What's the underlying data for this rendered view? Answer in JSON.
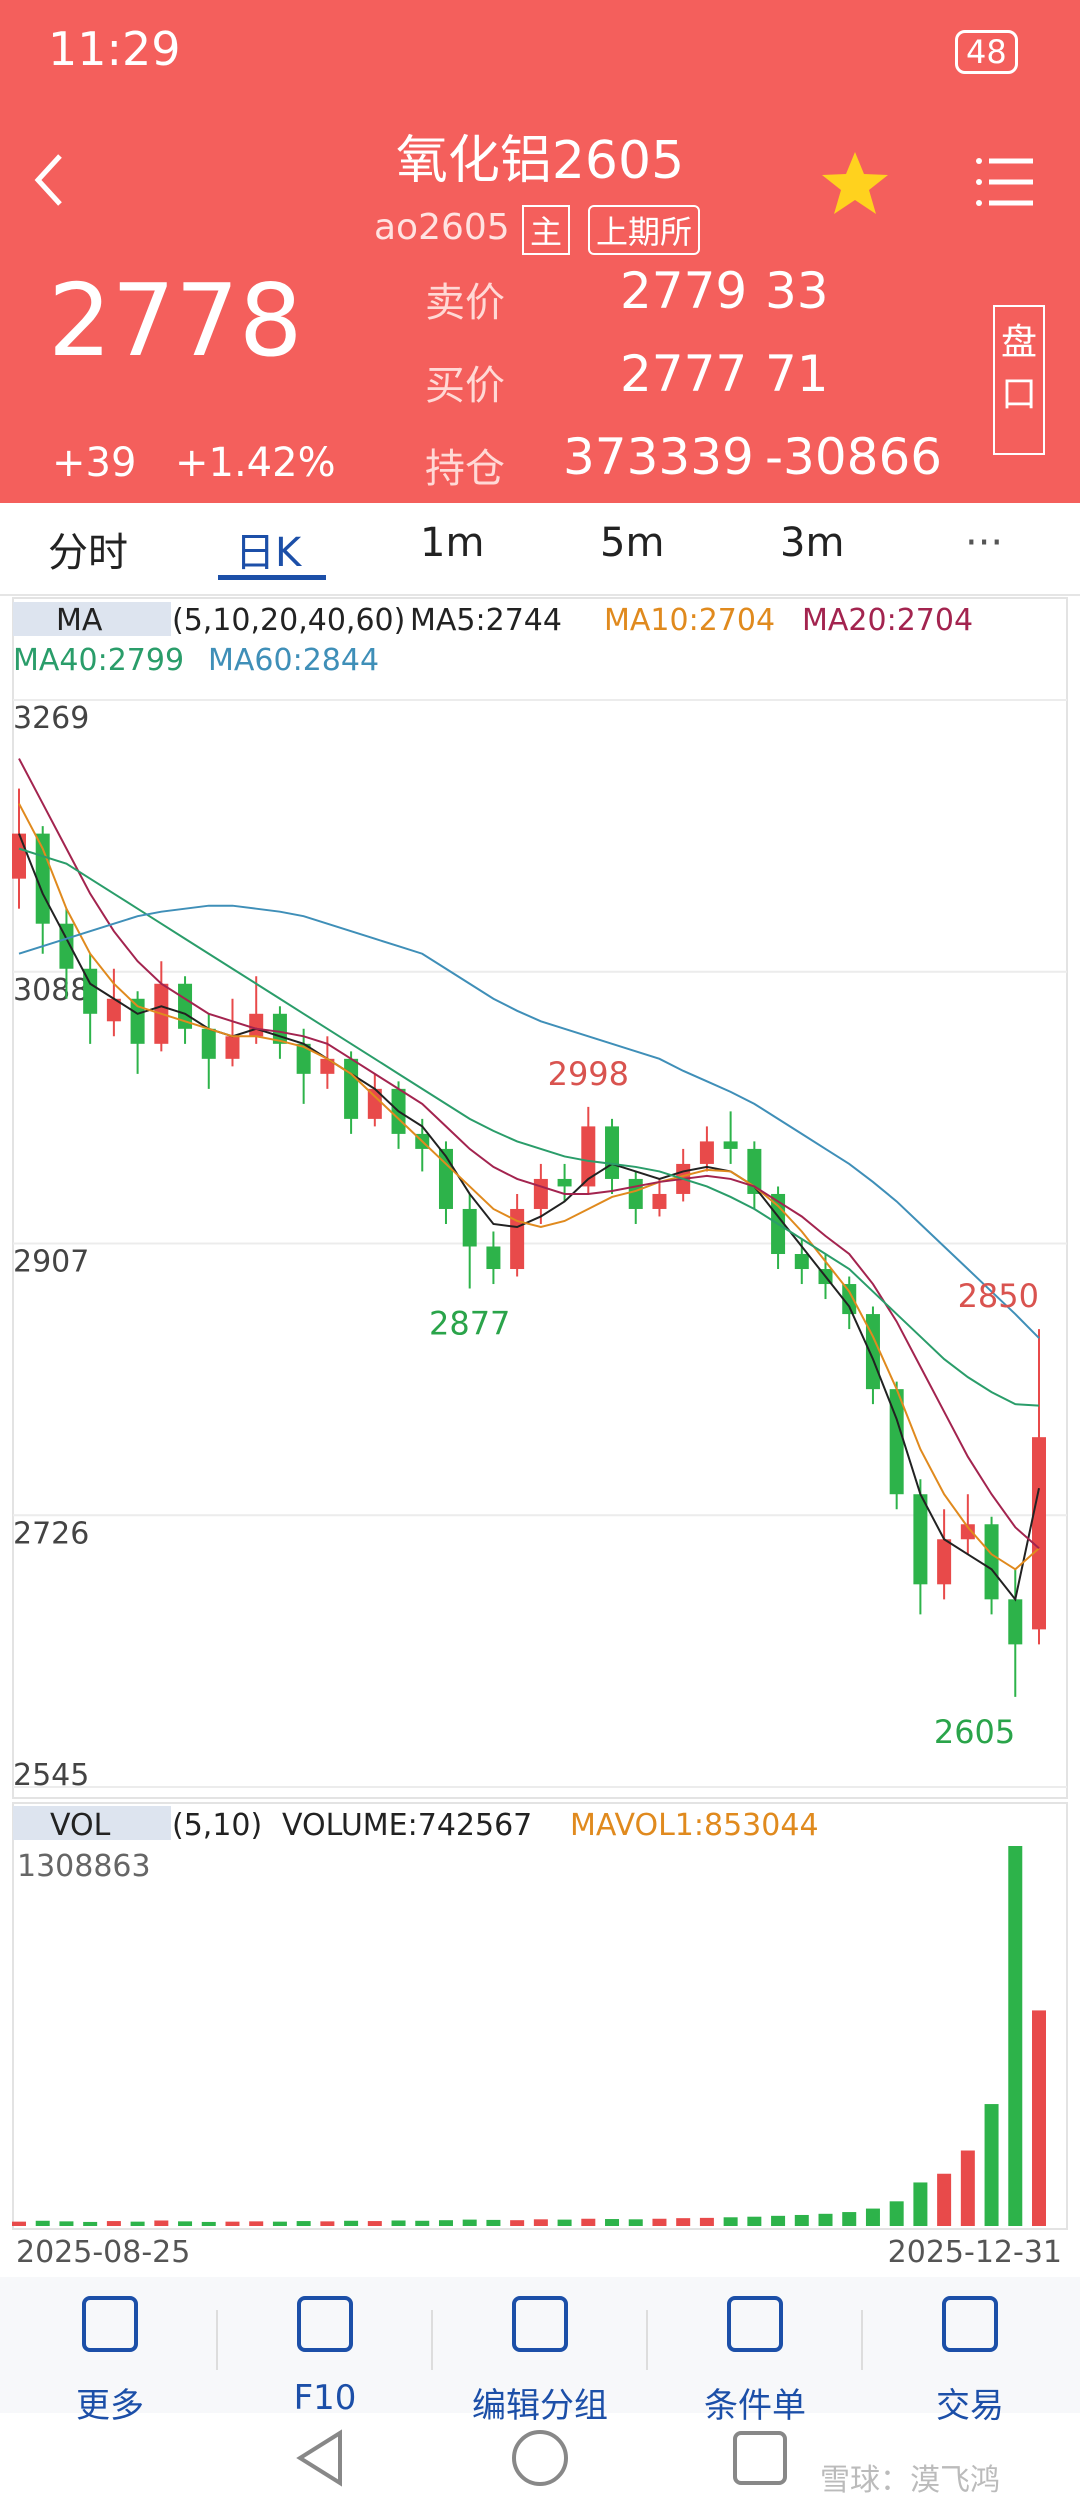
{
  "status": {
    "time": "11:29",
    "battery": "48"
  },
  "header": {
    "title": "氧化铝2605",
    "code": "ao2605",
    "badges": [
      "主",
      "上期所"
    ],
    "price": "2778",
    "change": "+39",
    "percent": "+1.42%",
    "quotes": [
      [
        "卖价",
        "2779",
        "33"
      ],
      [
        "买价",
        "2777",
        "71"
      ],
      [
        "持仓",
        "373339",
        "-30866"
      ]
    ],
    "side": "盘口"
  },
  "tabs": [
    "分时",
    "日K",
    "1m",
    "5m",
    "3m"
  ],
  "chart_data": {
    "type": "candlestick",
    "legend": {
      "title": "MA",
      "params": "(5,10,20,40,60)"
    },
    "ylim": [
      2545,
      3269
    ],
    "yticks": [
      3269,
      3088,
      2907,
      2726,
      2545
    ],
    "x": [
      "2025-08-25",
      "2025-12-31"
    ],
    "annotations": [
      "2998",
      "2877",
      "2850",
      "2605"
    ],
    "ohlc": [
      [
        3150,
        3210,
        3130,
        3180
      ],
      [
        3180,
        3185,
        3100,
        3120
      ],
      [
        3120,
        3130,
        3070,
        3090
      ],
      [
        3090,
        3100,
        3040,
        3060
      ],
      [
        3055,
        3090,
        3045,
        3070
      ],
      [
        3070,
        3075,
        3020,
        3040
      ],
      [
        3040,
        3095,
        3035,
        3080
      ],
      [
        3080,
        3085,
        3040,
        3050
      ],
      [
        3050,
        3060,
        3010,
        3030
      ],
      [
        3030,
        3070,
        3025,
        3045
      ],
      [
        3045,
        3085,
        3040,
        3060
      ],
      [
        3060,
        3065,
        3030,
        3040
      ],
      [
        3040,
        3050,
        3000,
        3020
      ],
      [
        3020,
        3045,
        3010,
        3030
      ],
      [
        3030,
        3035,
        2980,
        2990
      ],
      [
        2990,
        3020,
        2985,
        3010
      ],
      [
        3010,
        3015,
        2970,
        2980
      ],
      [
        2980,
        2990,
        2955,
        2970
      ],
      [
        2970,
        2975,
        2920,
        2930
      ],
      [
        2930,
        2940,
        2877,
        2905
      ],
      [
        2905,
        2915,
        2880,
        2890
      ],
      [
        2890,
        2940,
        2885,
        2930
      ],
      [
        2930,
        2960,
        2920,
        2950
      ],
      [
        2950,
        2960,
        2935,
        2945
      ],
      [
        2945,
        2998,
        2940,
        2985
      ],
      [
        2985,
        2990,
        2940,
        2950
      ],
      [
        2950,
        2955,
        2920,
        2930
      ],
      [
        2930,
        2950,
        2925,
        2940
      ],
      [
        2940,
        2970,
        2935,
        2960
      ],
      [
        2960,
        2985,
        2955,
        2975
      ],
      [
        2975,
        2995,
        2960,
        2970
      ],
      [
        2970,
        2975,
        2930,
        2940
      ],
      [
        2940,
        2945,
        2890,
        2900
      ],
      [
        2900,
        2910,
        2880,
        2890
      ],
      [
        2890,
        2900,
        2870,
        2880
      ],
      [
        2880,
        2885,
        2850,
        2860
      ],
      [
        2860,
        2865,
        2800,
        2810
      ],
      [
        2810,
        2815,
        2730,
        2740
      ],
      [
        2740,
        2750,
        2660,
        2680
      ],
      [
        2680,
        2730,
        2670,
        2710
      ],
      [
        2710,
        2740,
        2700,
        2720
      ],
      [
        2720,
        2725,
        2660,
        2670
      ],
      [
        2670,
        2690,
        2605,
        2640
      ],
      [
        2650,
        2850,
        2640,
        2778
      ]
    ],
    "up_color": "#e84a4a",
    "down_color": "#2db34a",
    "ma": [
      {
        "name": "MA5",
        "label": "MA5:2744",
        "color": "#222222",
        "values": [
          3180,
          3140,
          3110,
          3080,
          3070,
          3060,
          3065,
          3060,
          3050,
          3045,
          3050,
          3045,
          3040,
          3030,
          3020,
          3010,
          2995,
          2985,
          2965,
          2940,
          2920,
          2918,
          2925,
          2935,
          2950,
          2960,
          2955,
          2950,
          2955,
          2958,
          2955,
          2945,
          2925,
          2905,
          2885,
          2865,
          2830,
          2790,
          2740,
          2710,
          2700,
          2690,
          2670,
          2744
        ]
      },
      {
        "name": "MA10",
        "label": "MA10:2704",
        "color": "#e08a1e",
        "values": [
          3200,
          3170,
          3130,
          3100,
          3080,
          3065,
          3060,
          3055,
          3050,
          3045,
          3045,
          3042,
          3038,
          3030,
          3020,
          3005,
          2990,
          2975,
          2960,
          2945,
          2930,
          2922,
          2918,
          2922,
          2930,
          2938,
          2942,
          2948,
          2952,
          2956,
          2955,
          2945,
          2932,
          2915,
          2895,
          2875,
          2845,
          2810,
          2770,
          2740,
          2718,
          2700,
          2690,
          2704
        ]
      },
      {
        "name": "MA20",
        "label": "MA20:2704",
        "color": "#a3244f",
        "values": [
          3230,
          3200,
          3170,
          3140,
          3115,
          3095,
          3080,
          3070,
          3060,
          3055,
          3050,
          3048,
          3045,
          3040,
          3030,
          3020,
          3010,
          3000,
          2985,
          2970,
          2958,
          2950,
          2945,
          2940,
          2940,
          2942,
          2945,
          2948,
          2950,
          2952,
          2950,
          2945,
          2935,
          2925,
          2912,
          2900,
          2880,
          2855,
          2825,
          2795,
          2765,
          2740,
          2718,
          2704
        ]
      },
      {
        "name": "MA40",
        "label": "MA40:2799",
        "color": "#2a9d6a",
        "values": [
          3170,
          3165,
          3160,
          3150,
          3140,
          3130,
          3120,
          3110,
          3100,
          3090,
          3080,
          3070,
          3060,
          3050,
          3040,
          3030,
          3020,
          3010,
          3000,
          2990,
          2982,
          2975,
          2970,
          2965,
          2962,
          2960,
          2958,
          2955,
          2950,
          2945,
          2938,
          2930,
          2920,
          2910,
          2900,
          2890,
          2875,
          2860,
          2845,
          2830,
          2818,
          2808,
          2800,
          2799
        ]
      },
      {
        "name": "MA60",
        "label": "MA60:2844",
        "color": "#3f8fb8",
        "values": [
          3100,
          3105,
          3110,
          3115,
          3120,
          3125,
          3128,
          3130,
          3132,
          3132,
          3130,
          3128,
          3125,
          3120,
          3115,
          3110,
          3105,
          3100,
          3090,
          3080,
          3070,
          3062,
          3055,
          3050,
          3045,
          3040,
          3035,
          3030,
          3022,
          3015,
          3008,
          3000,
          2990,
          2980,
          2970,
          2960,
          2948,
          2935,
          2920,
          2905,
          2890,
          2875,
          2860,
          2844
        ]
      }
    ],
    "volume": {
      "title": "VOL",
      "params": "(5,10)",
      "volume_label": "VOLUME:742567",
      "mavol_label": "MAVOL1:853044",
      "ylim": [
        0,
        1308863
      ],
      "yticks": [
        1308863
      ],
      "values": [
        15000,
        18000,
        16000,
        14000,
        17000,
        15000,
        19000,
        16000,
        14000,
        15000,
        16000,
        15000,
        17000,
        16000,
        18000,
        17000,
        19000,
        18000,
        20000,
        22000,
        21000,
        20000,
        23000,
        22000,
        25000,
        24000,
        23000,
        25000,
        27000,
        28000,
        30000,
        32000,
        35000,
        38000,
        42000,
        48000,
        60000,
        85000,
        150000,
        180000,
        260000,
        420000,
        1308863,
        742567
      ]
    }
  },
  "nav": [
    "更多",
    "F10",
    "编辑分组",
    "条件单",
    "交易"
  ],
  "watermark": "雪球：漠飞鸿"
}
